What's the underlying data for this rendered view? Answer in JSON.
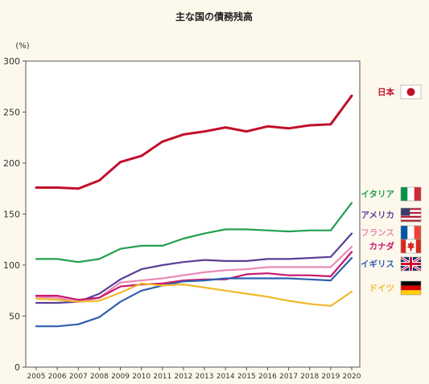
{
  "chart_data": {
    "type": "line",
    "title": "主な国の債務残高",
    "ylabel": "(%)",
    "xlabel": "",
    "ylim": [
      0,
      300
    ],
    "yticks": [
      0,
      50,
      100,
      150,
      200,
      250,
      300
    ],
    "x": [
      "2005",
      "2006",
      "2007",
      "2008",
      "2009",
      "2010",
      "2011",
      "2012",
      "2013",
      "2014",
      "2015",
      "2016",
      "2017",
      "2018",
      "2019",
      "2020"
    ],
    "grid": false,
    "legend": "right",
    "series": [
      {
        "name": "日本",
        "color": "#c0102a",
        "flag": "japan-flag",
        "values": [
          176,
          176,
          175,
          183,
          201,
          207,
          221,
          228,
          231,
          235,
          231,
          236,
          234,
          237,
          238,
          266
        ]
      },
      {
        "name": "イタリア",
        "color": "#23a04e",
        "flag": "italy-flag",
        "values": [
          106,
          106,
          103,
          106,
          116,
          119,
          119,
          126,
          131,
          135,
          135,
          134,
          133,
          134,
          134,
          161
        ]
      },
      {
        "name": "アメリカ",
        "color": "#5a3f98",
        "flag": "usa-flag",
        "values": [
          63,
          63,
          64,
          72,
          86,
          96,
          100,
          103,
          105,
          104,
          104,
          106,
          106,
          107,
          108,
          131
        ]
      },
      {
        "name": "フランス",
        "color": "#e88bb6",
        "flag": "france-flag",
        "values": [
          69,
          68,
          64,
          68,
          83,
          85,
          87,
          90,
          93,
          95,
          96,
          98,
          98,
          98,
          98,
          118
        ]
      },
      {
        "name": "カナダ",
        "color": "#c8176d",
        "flag": "canada-flag",
        "values": [
          70,
          70,
          66,
          68,
          79,
          81,
          82,
          85,
          86,
          86,
          91,
          92,
          90,
          90,
          89,
          113
        ]
      },
      {
        "name": "イギリス",
        "color": "#2e5fb0",
        "flag": "uk-flag",
        "values": [
          40,
          40,
          42,
          49,
          64,
          75,
          80,
          84,
          85,
          87,
          87,
          87,
          87,
          86,
          85,
          107
        ]
      },
      {
        "name": "ドイツ",
        "color": "#f0b92b",
        "flag": "germany-flag",
        "values": [
          67,
          66,
          64,
          65,
          73,
          82,
          80,
          81,
          78,
          75,
          72,
          69,
          65,
          62,
          60,
          74
        ]
      }
    ]
  }
}
